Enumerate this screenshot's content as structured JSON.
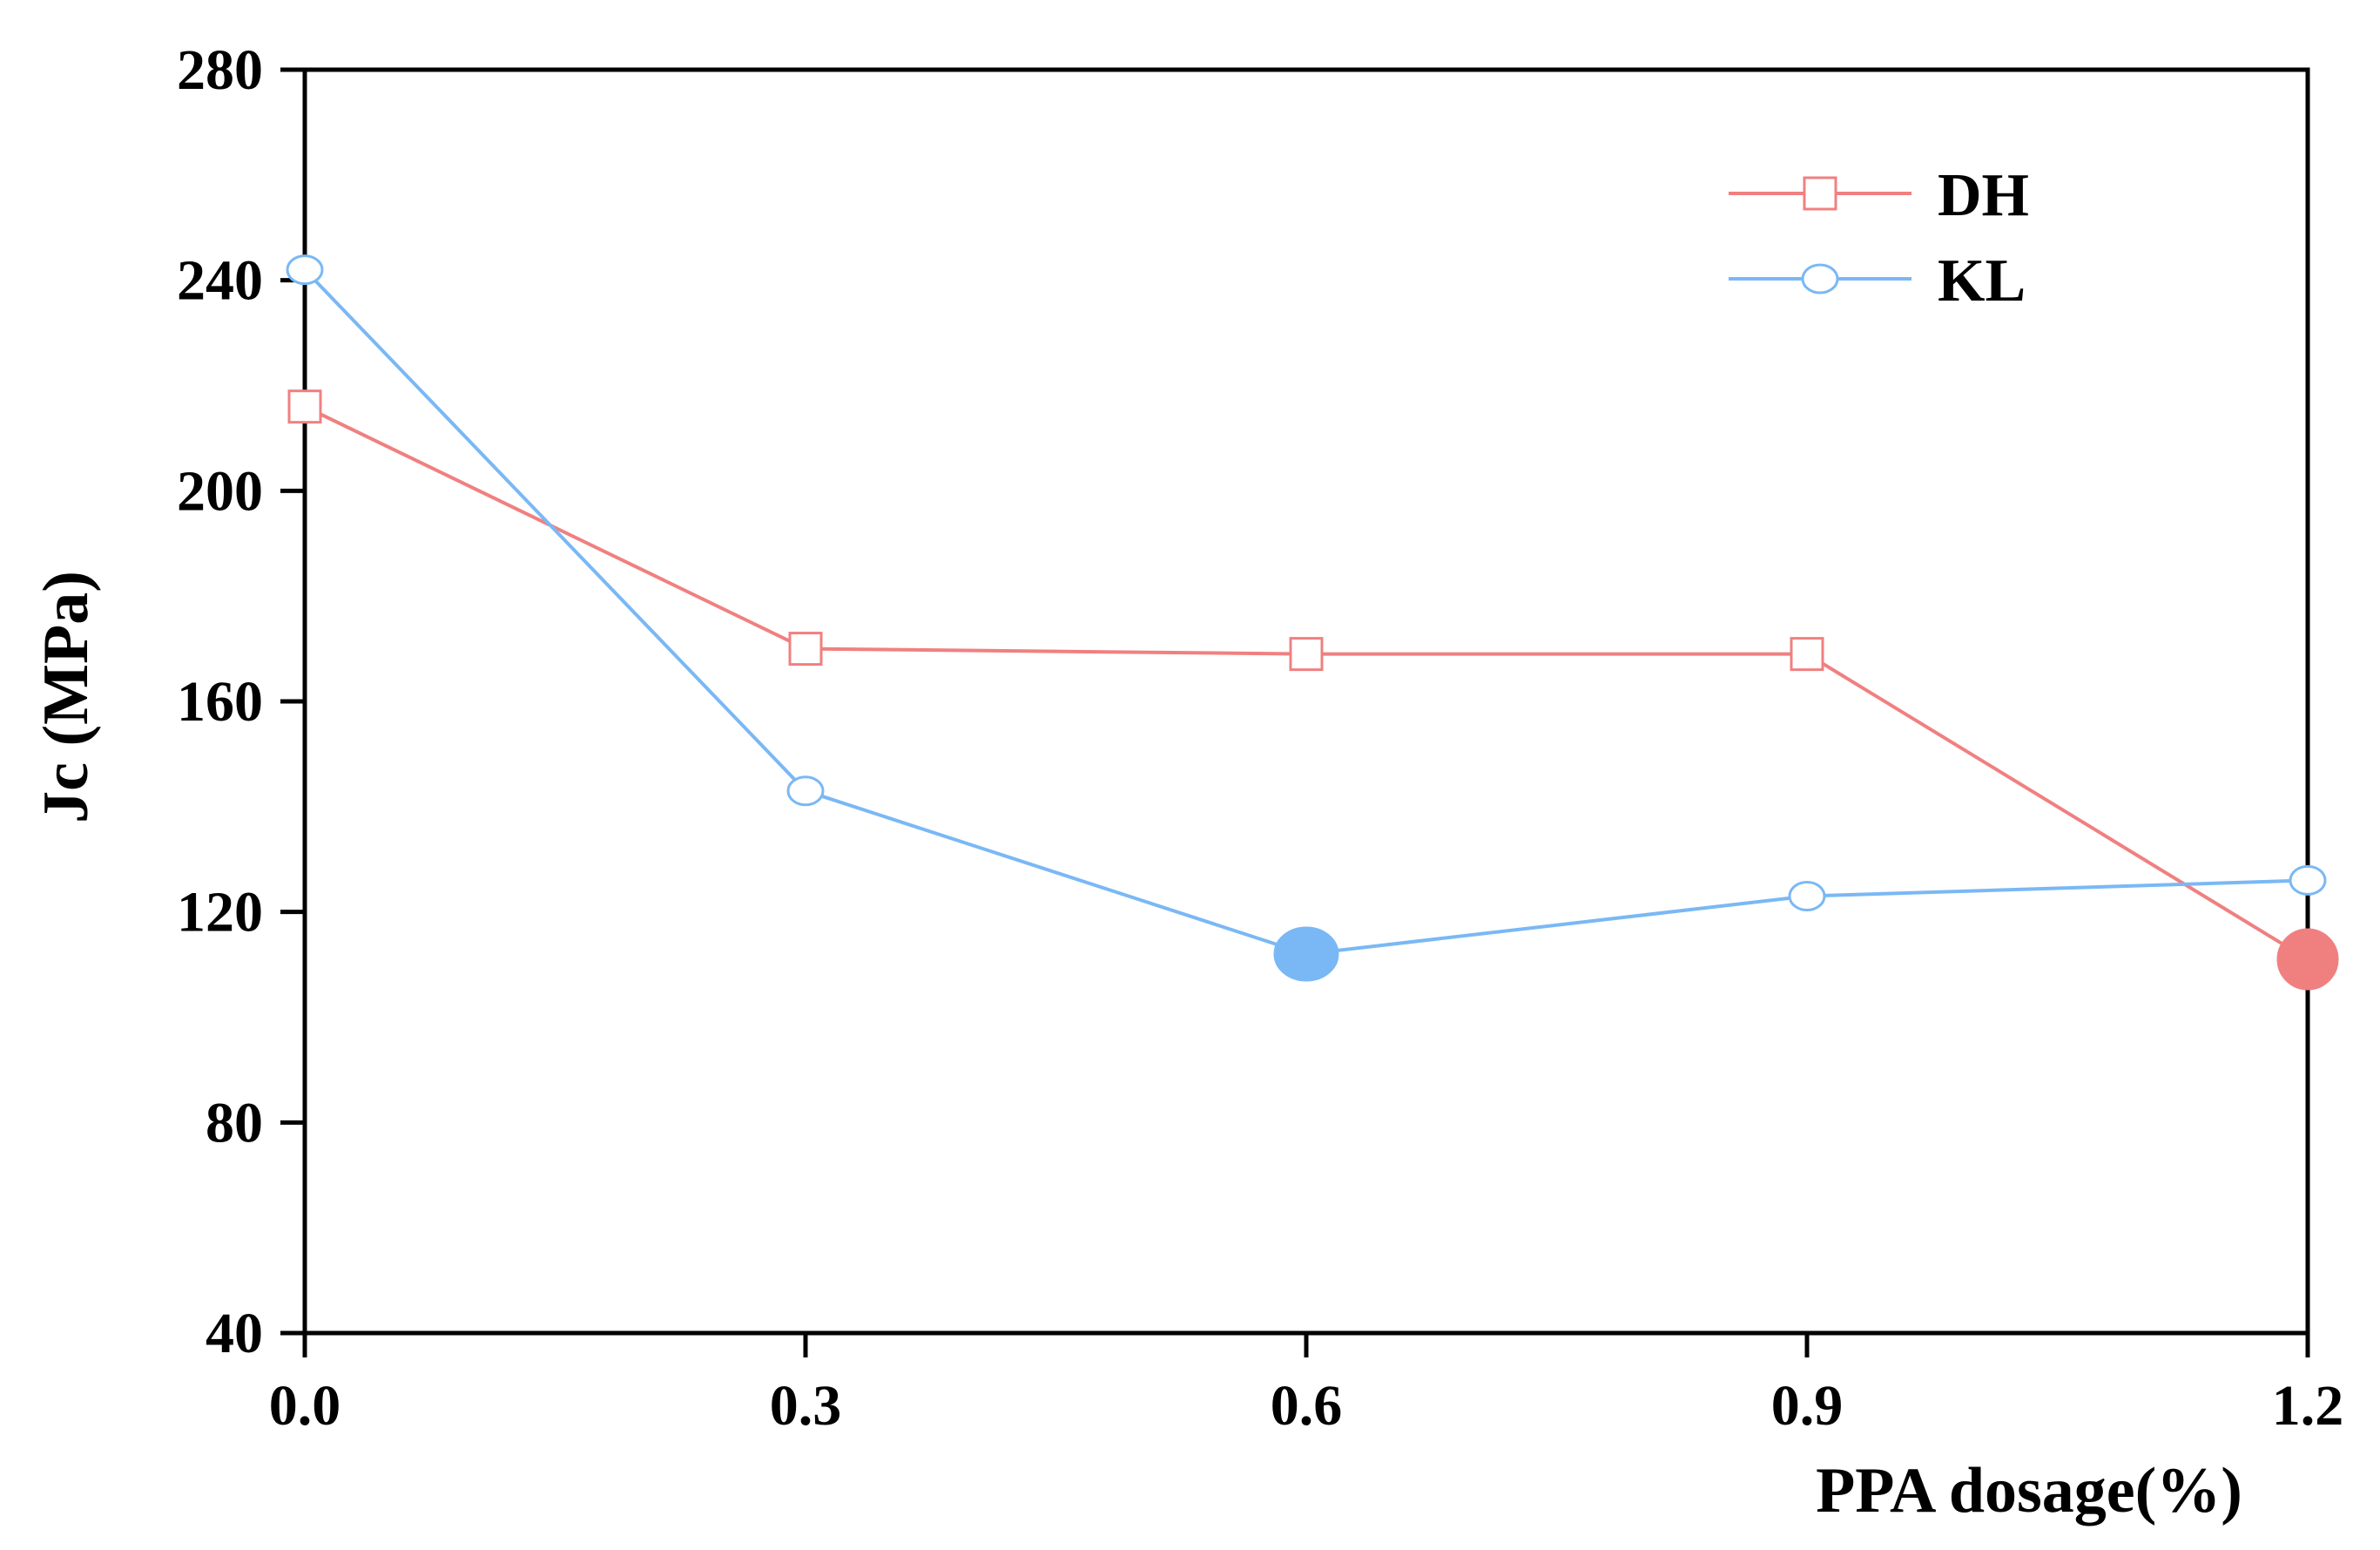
{
  "chart_data": {
    "type": "line",
    "title": "",
    "xlabel": "PPA dosage(%)",
    "ylabel": "Jc (MPa)",
    "x": [
      0.0,
      0.3,
      0.6,
      0.9,
      1.2
    ],
    "x_tick_labels": [
      "0.0",
      "0.3",
      "0.6",
      "0.9",
      "1.2"
    ],
    "xlim": [
      0.0,
      1.2
    ],
    "y_ticks": [
      40,
      80,
      120,
      160,
      200,
      240,
      280
    ],
    "y_tick_labels": [
      "40",
      "80",
      "120",
      "160",
      "200",
      "240",
      "280"
    ],
    "ylim": [
      40,
      280
    ],
    "grid": false,
    "legend_position": "top-right",
    "series": [
      {
        "name": "DH",
        "color": "#f08080",
        "marker": "square-open",
        "values": [
          216,
          170,
          169,
          169,
          111
        ],
        "highlight_index": 4
      },
      {
        "name": "KL",
        "color": "#7ab8f5",
        "marker": "circle-open",
        "values": [
          242,
          143,
          112,
          123,
          126
        ],
        "highlight_index": 2
      }
    ]
  }
}
